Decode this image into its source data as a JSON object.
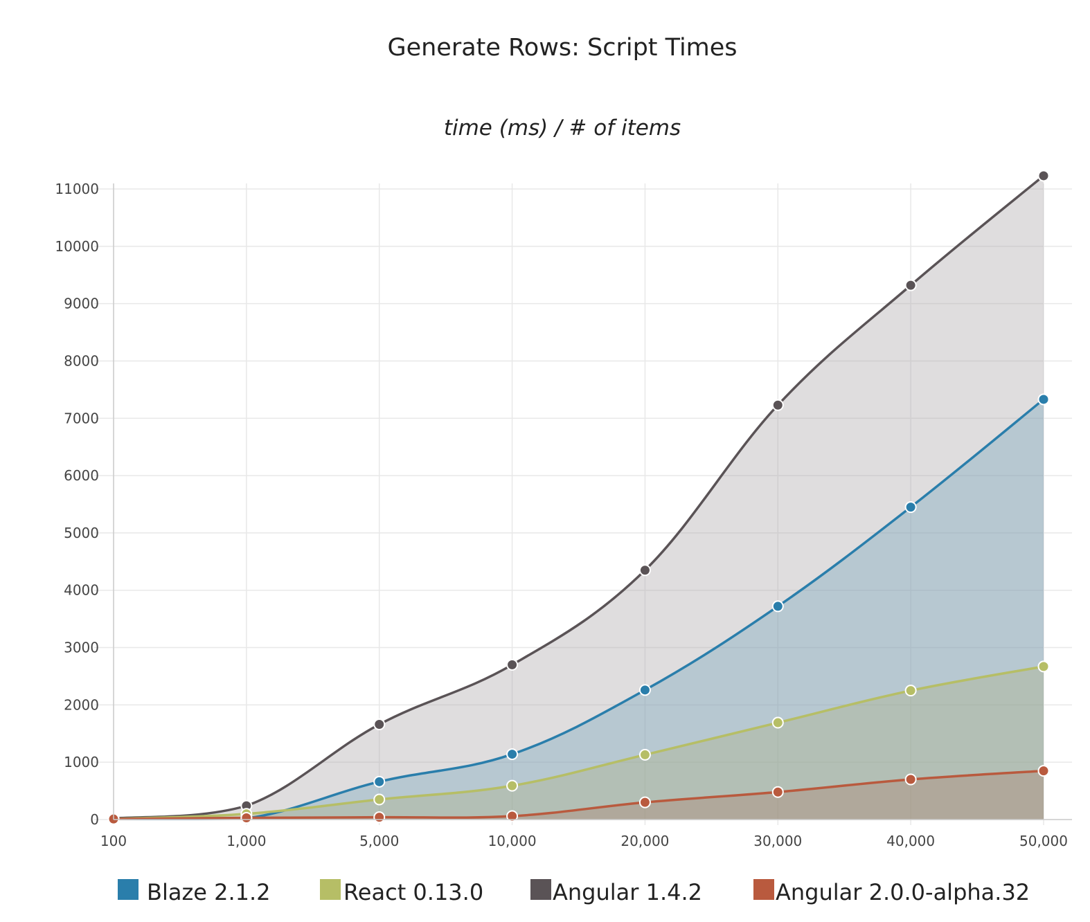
{
  "chart_data": {
    "type": "area",
    "title": "Generate Rows: Script Times",
    "subtitle": "time (ms) / # of items",
    "xlabel": "",
    "ylabel": "",
    "categories": [
      "100",
      "1,000",
      "5,000",
      "10,000",
      "20,000",
      "30,000",
      "40,000",
      "50,000"
    ],
    "y_ticks": [
      "0",
      "1000",
      "2000",
      "3000",
      "4000",
      "5000",
      "6000",
      "7000",
      "8000",
      "9000",
      "10000",
      "11000"
    ],
    "ylim": [
      0,
      11000
    ],
    "grid": true,
    "legend_position": "bottom",
    "series": [
      {
        "name": "Angular 1.4.2",
        "color": "#5a5356",
        "fill": "rgba(170,165,168,0.38)",
        "values": [
          20,
          240,
          1660,
          2700,
          4350,
          7230,
          9320,
          11230
        ]
      },
      {
        "name": "Blaze 2.1.2",
        "color": "#2a7eab",
        "fill": "rgba(100,155,185,0.32)",
        "values": [
          10,
          20,
          660,
          1140,
          2260,
          3720,
          5450,
          7330
        ]
      },
      {
        "name": "React 0.13.0",
        "color": "#b6be66",
        "fill": "rgba(170,175,120,0.32)",
        "values": [
          10,
          100,
          350,
          590,
          1130,
          1690,
          2250,
          2670
        ]
      },
      {
        "name": "Angular 2.0.0-alpha.32",
        "color": "#b95a3e",
        "fill": "rgba(170,120,100,0.32)",
        "values": [
          10,
          30,
          40,
          60,
          300,
          480,
          700,
          850
        ]
      }
    ],
    "legend_order": [
      "Blaze 2.1.2",
      "React 0.13.0",
      "Angular 1.4.2",
      "Angular 2.0.0-alpha.32"
    ]
  }
}
